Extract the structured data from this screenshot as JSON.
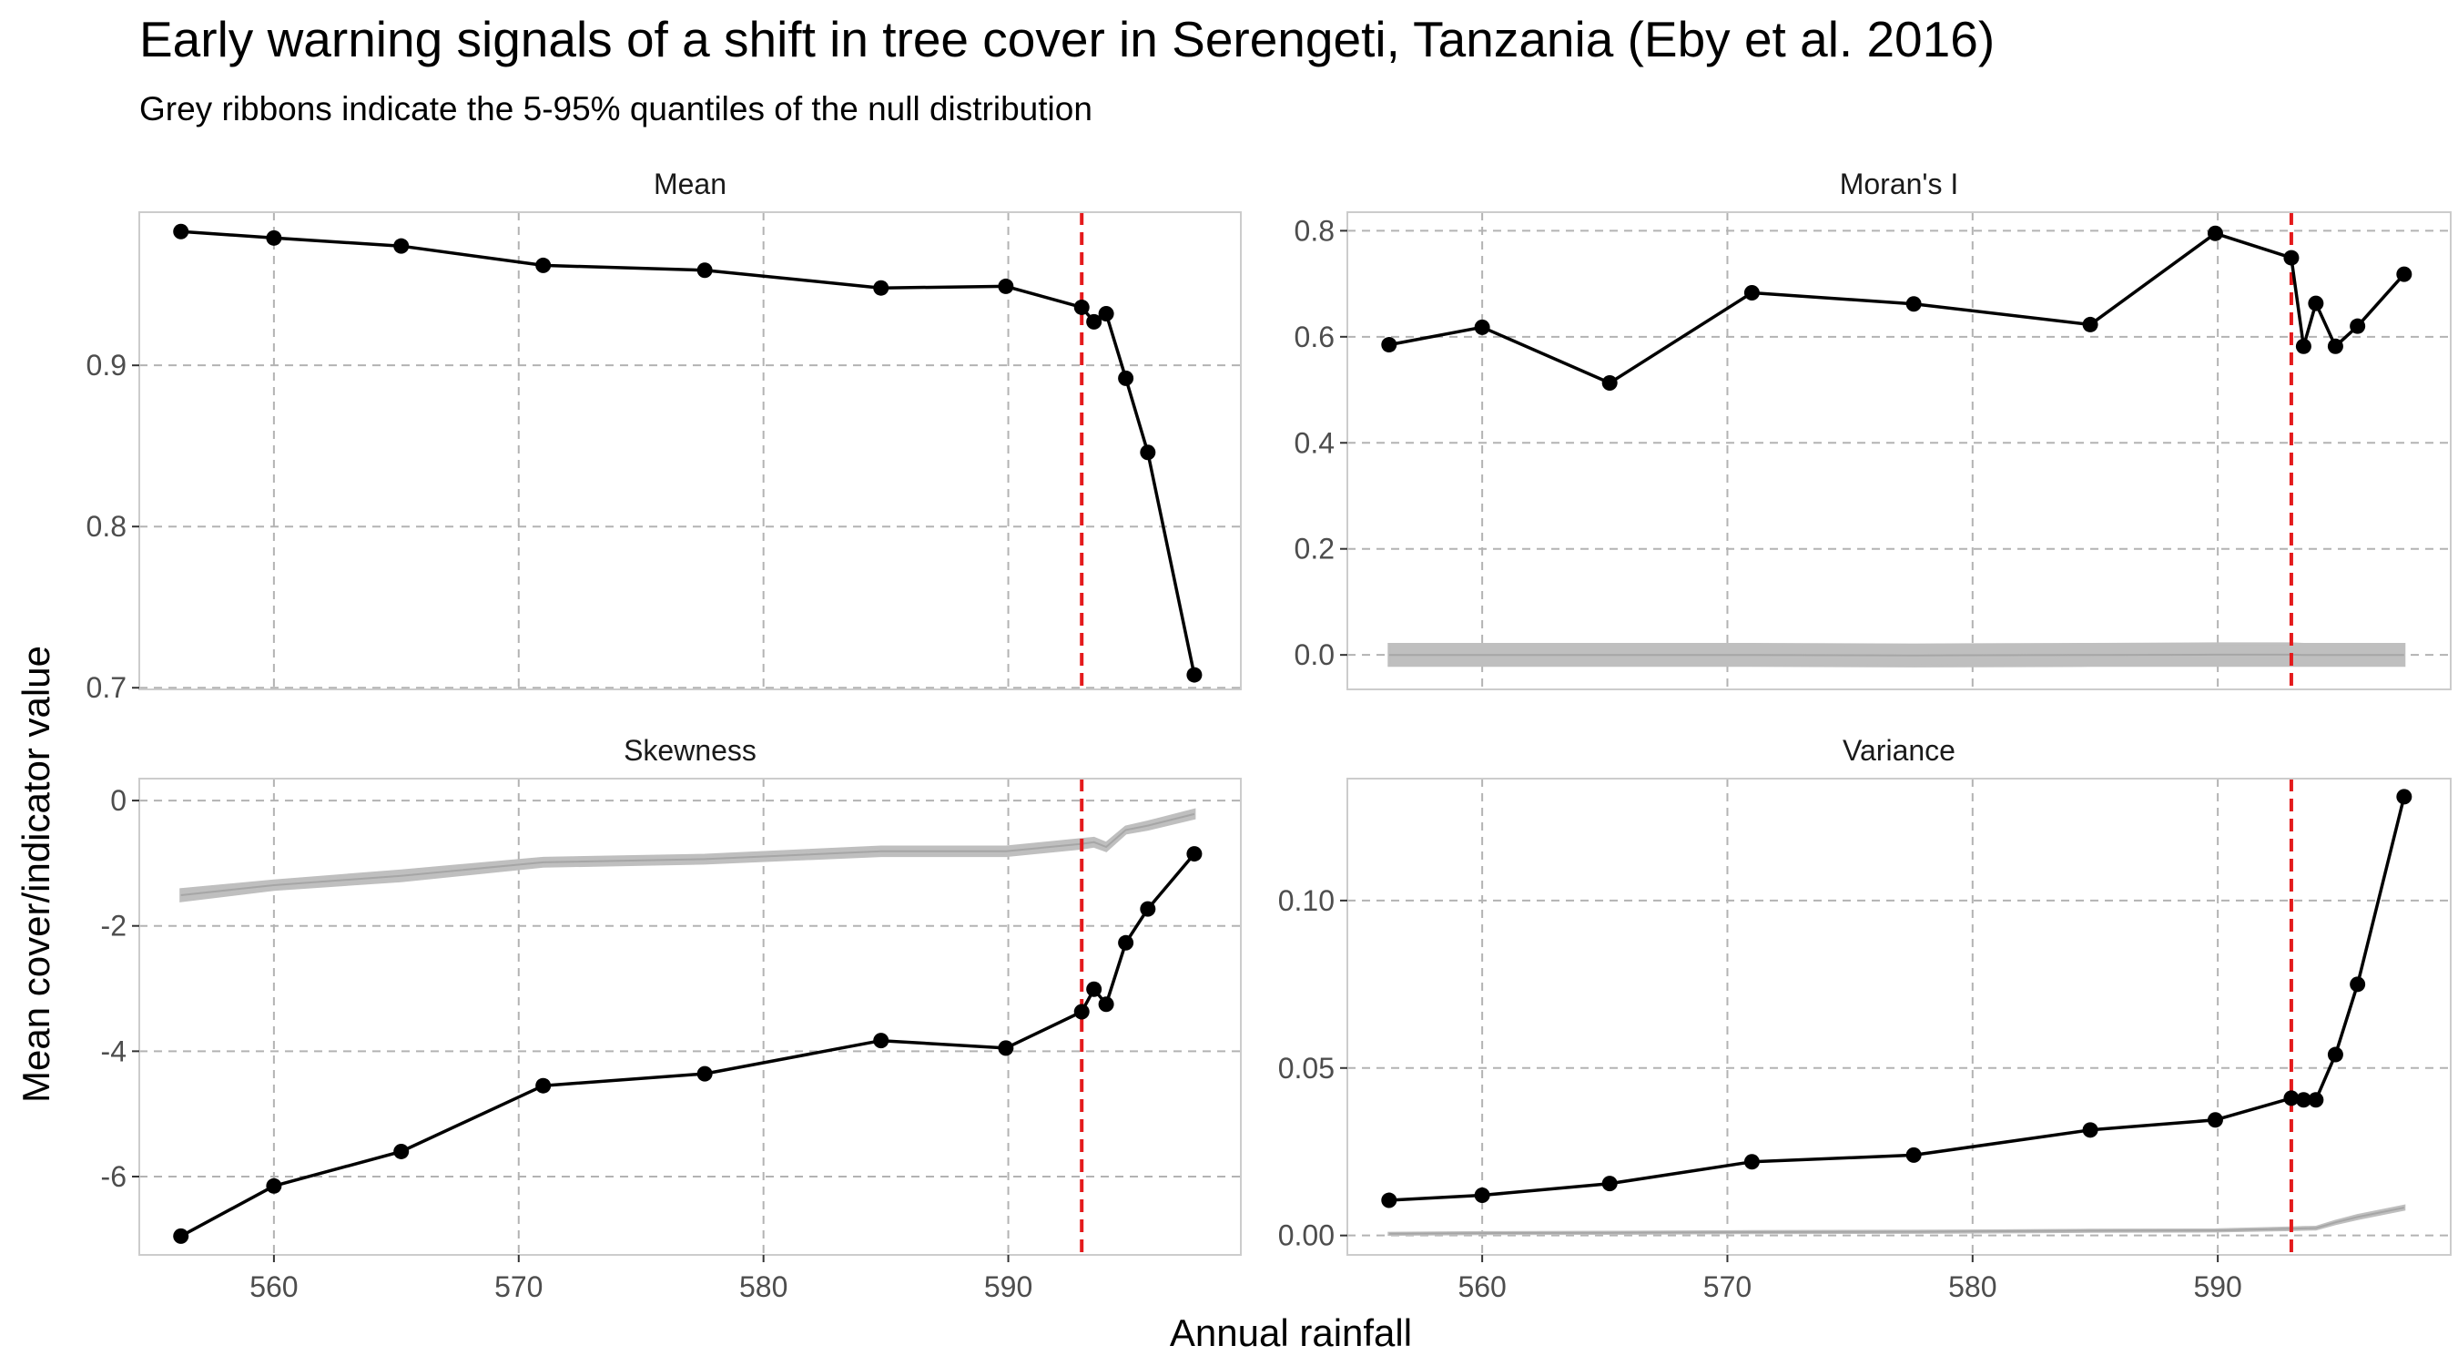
{
  "title": "Early warning signals of a shift in tree cover in Serengeti, Tanzania (Eby et al. 2016)",
  "subtitle": "Grey ribbons indicate the 5-95% quantiles of the null distribution",
  "xlabel": "Annual rainfall",
  "ylabel": "Mean cover/indicator value",
  "colors": {
    "line": "#000000",
    "threshold": "#e41a1c",
    "ribbon": "#bfbfbf",
    "grid": "#b3b3b3",
    "border": "#cccccc"
  },
  "chart_data": [
    {
      "type": "line",
      "panel": "Mean",
      "x": [
        556.2,
        560.0,
        565.2,
        571.0,
        577.6,
        584.8,
        589.9,
        593.0,
        593.5,
        594.0,
        594.8,
        595.7,
        597.6
      ],
      "values": [
        0.983,
        0.979,
        0.974,
        0.962,
        0.959,
        0.948,
        0.949,
        0.936,
        0.927,
        0.932,
        0.892,
        0.846,
        0.708
      ],
      "null_ribbon": null,
      "threshold_x": 593.0,
      "xlim": [
        554.5,
        599.5
      ],
      "ylim": [
        0.699,
        0.995
      ],
      "yticks": [
        0.7,
        0.8,
        0.9
      ],
      "ytick_labels": [
        "0.7",
        "0.8",
        "0.9"
      ],
      "xticks": [
        560,
        570,
        580,
        590
      ],
      "xtick_labels": [
        "560",
        "570",
        "580",
        "590"
      ]
    },
    {
      "type": "line",
      "panel": "Moran's I",
      "x": [
        556.2,
        560.0,
        565.2,
        571.0,
        577.6,
        584.8,
        589.9,
        593.0,
        593.5,
        594.0,
        594.8,
        595.7,
        597.6
      ],
      "values": [
        0.585,
        0.618,
        0.513,
        0.683,
        0.662,
        0.623,
        0.795,
        0.749,
        0.582,
        0.663,
        0.582,
        0.62,
        0.718
      ],
      "null_ribbon": {
        "x": [
          556.2,
          560.0,
          565.2,
          571.0,
          577.6,
          584.8,
          589.9,
          593.0,
          593.5,
          594.0,
          594.8,
          595.7,
          597.6
        ],
        "low": [
          -0.02,
          -0.02,
          -0.02,
          -0.02,
          -0.021,
          -0.02,
          -0.02,
          -0.02,
          -0.02,
          -0.02,
          -0.02,
          -0.02,
          -0.02
        ],
        "high": [
          0.02,
          0.02,
          0.02,
          0.02,
          0.019,
          0.02,
          0.021,
          0.021,
          0.02,
          0.02,
          0.02,
          0.02,
          0.02
        ]
      },
      "threshold_x": 593.0,
      "xlim": [
        554.5,
        599.5
      ],
      "ylim": [
        -0.065,
        0.835
      ],
      "yticks": [
        0.0,
        0.2,
        0.4,
        0.6,
        0.8
      ],
      "ytick_labels": [
        "0.0",
        "0.2",
        "0.4",
        "0.6",
        "0.8"
      ],
      "xticks": [
        560,
        570,
        580,
        590
      ],
      "xtick_labels": [
        "560",
        "570",
        "580",
        "590"
      ]
    },
    {
      "type": "line",
      "panel": "Skewness",
      "x": [
        556.2,
        560.0,
        565.2,
        571.0,
        577.6,
        584.8,
        589.9,
        593.0,
        593.5,
        594.0,
        594.8,
        595.7,
        597.6
      ],
      "values": [
        -6.95,
        -6.15,
        -5.6,
        -4.55,
        -4.36,
        -3.83,
        -3.95,
        -3.37,
        -3.01,
        -3.25,
        -2.27,
        -1.73,
        -0.85
      ],
      "null_ribbon": {
        "x": [
          556.2,
          560.0,
          565.2,
          571.0,
          577.6,
          584.8,
          589.9,
          593.0,
          593.5,
          594.0,
          594.8,
          595.7,
          597.6
        ],
        "low": [
          -1.6,
          -1.42,
          -1.28,
          -1.05,
          -1.0,
          -0.88,
          -0.88,
          -0.76,
          -0.73,
          -0.8,
          -0.52,
          -0.46,
          -0.28
        ],
        "high": [
          -1.42,
          -1.28,
          -1.12,
          -0.92,
          -0.87,
          -0.74,
          -0.74,
          -0.62,
          -0.6,
          -0.68,
          -0.42,
          -0.34,
          -0.15
        ]
      },
      "threshold_x": 593.0,
      "xlim": [
        554.5,
        599.5
      ],
      "ylim": [
        -7.25,
        0.35
      ],
      "yticks": [
        -6,
        -4,
        -2,
        0
      ],
      "ytick_labels": [
        "-6",
        "-4",
        "-2",
        "0"
      ],
      "xticks": [
        560,
        570,
        580,
        590
      ],
      "xtick_labels": [
        "560",
        "570",
        "580",
        "590"
      ]
    },
    {
      "type": "line",
      "panel": "Variance",
      "x": [
        556.2,
        560.0,
        565.2,
        571.0,
        577.6,
        584.8,
        589.9,
        593.0,
        593.5,
        594.0,
        594.8,
        595.7,
        597.6
      ],
      "values": [
        0.0105,
        0.012,
        0.0155,
        0.022,
        0.024,
        0.0315,
        0.0345,
        0.041,
        0.0405,
        0.0405,
        0.054,
        0.075,
        0.131
      ],
      "null_ribbon": {
        "x": [
          556.2,
          560.0,
          565.2,
          571.0,
          577.6,
          584.8,
          589.9,
          593.0,
          593.5,
          594.0,
          594.8,
          595.7,
          597.6
        ],
        "low": [
          0.0003,
          0.0005,
          0.0006,
          0.0008,
          0.0009,
          0.0012,
          0.0013,
          0.0017,
          0.0018,
          0.0019,
          0.0035,
          0.005,
          0.0078
        ],
        "high": [
          0.0007,
          0.0009,
          0.001,
          0.0012,
          0.0013,
          0.0016,
          0.0017,
          0.0023,
          0.0024,
          0.0025,
          0.0043,
          0.006,
          0.0088
        ]
      },
      "threshold_x": 593.0,
      "xlim": [
        554.5,
        599.5
      ],
      "ylim": [
        -0.0058,
        0.1364
      ],
      "yticks": [
        0.0,
        0.05,
        0.1
      ],
      "ytick_labels": [
        "0.00",
        "0.05",
        "0.10"
      ],
      "xticks": [
        560,
        570,
        580,
        590
      ],
      "xtick_labels": [
        "560",
        "570",
        "580",
        "590"
      ]
    }
  ]
}
